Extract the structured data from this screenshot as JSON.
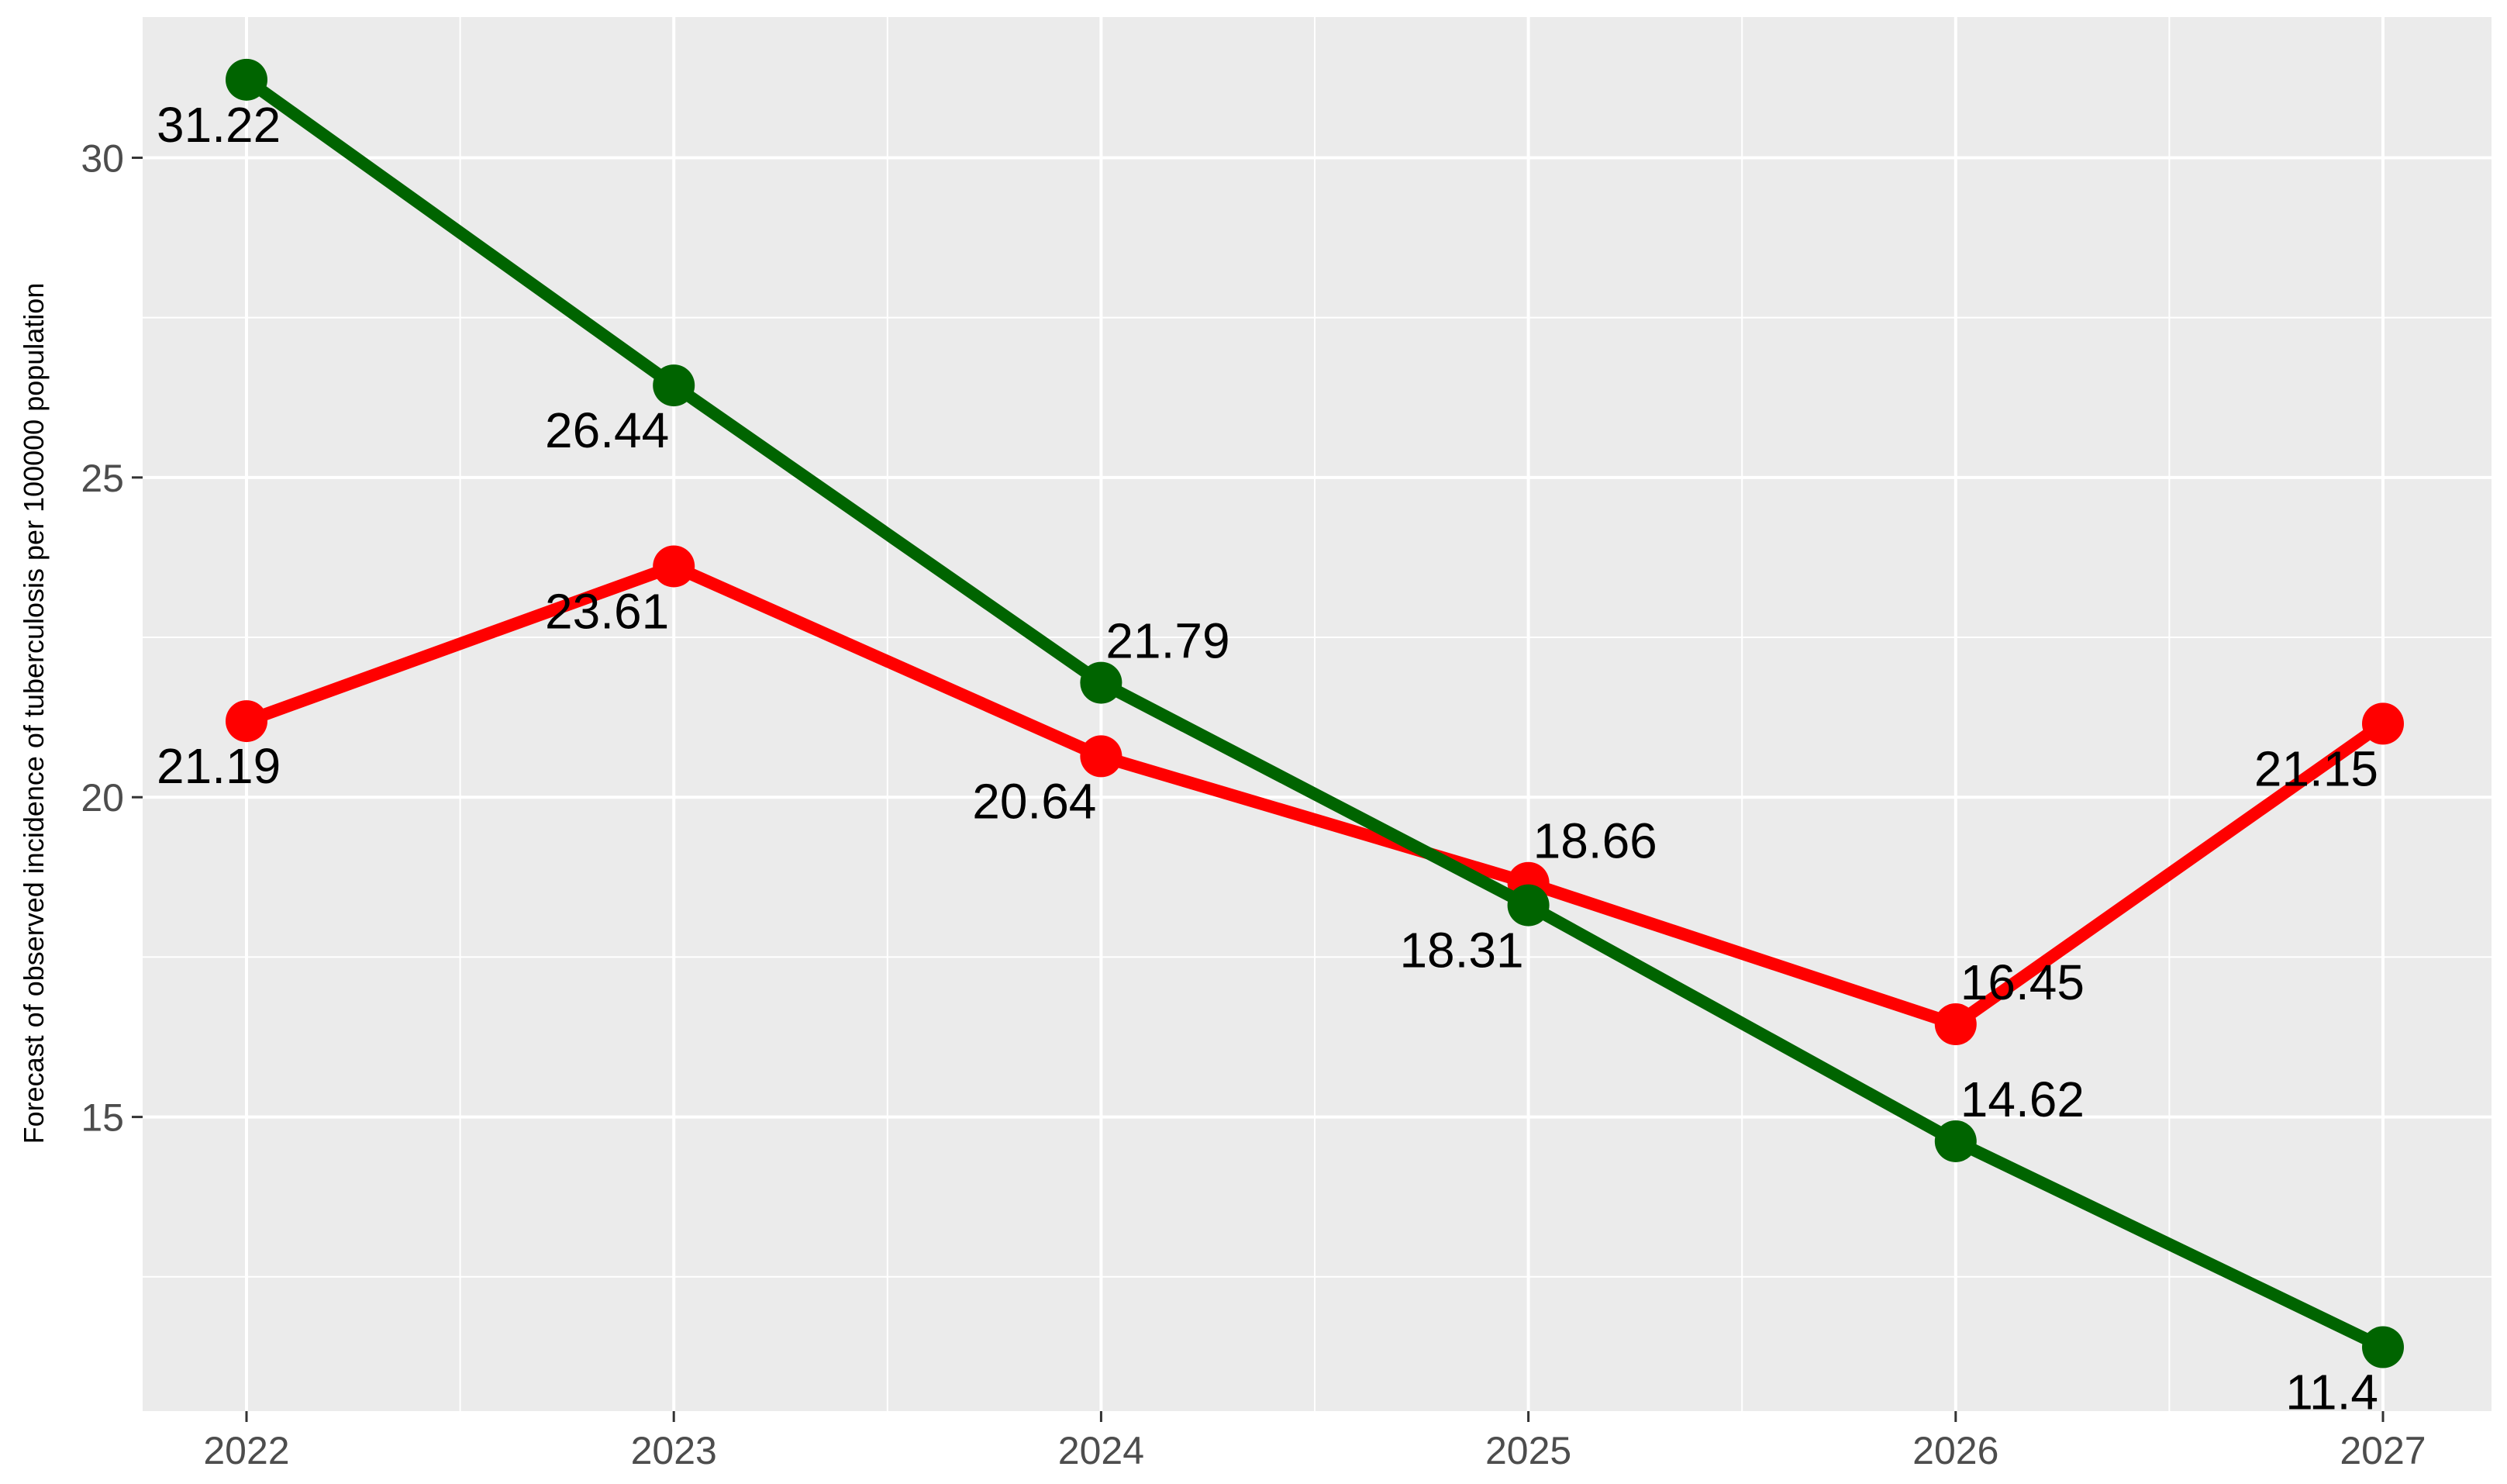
{
  "chart_data": {
    "type": "line",
    "title": "",
    "xlabel": "",
    "ylabel": "Forecast of observed incidence of tuberculosis per 100000 population",
    "categories": [
      "2022",
      "2023",
      "2024",
      "2025",
      "2026",
      "2027"
    ],
    "x_tick_labels": [
      "2022",
      "2023",
      "2024",
      "2025",
      "2026",
      "2027"
    ],
    "y_tick_labels": [
      "15",
      "20",
      "25",
      "30"
    ],
    "y_ticks": [
      15,
      20,
      25,
      30
    ],
    "ylim": [
      10.4,
      32.2
    ],
    "grid": true,
    "legend": "none",
    "series": [
      {
        "color": "#ff0000",
        "values": [
          21.19,
          23.61,
          20.64,
          18.66,
          16.45,
          21.15
        ],
        "labels": [
          "21.19",
          "23.61",
          "20.64",
          "18.66",
          "16.45",
          "21.15"
        ],
        "label_positions": [
          "below-right",
          "below-left",
          "below-left",
          "above-right",
          "above-right",
          "below-left"
        ]
      },
      {
        "color": "#006400",
        "values": [
          31.22,
          26.44,
          21.79,
          18.31,
          14.62,
          11.4
        ],
        "labels": [
          "31.22",
          "26.44",
          "21.79",
          "18.31",
          "14.62",
          "11.4"
        ],
        "label_positions": [
          "below-right",
          "below-left",
          "above-right",
          "below-left",
          "above-right",
          "below-left"
        ]
      }
    ]
  }
}
